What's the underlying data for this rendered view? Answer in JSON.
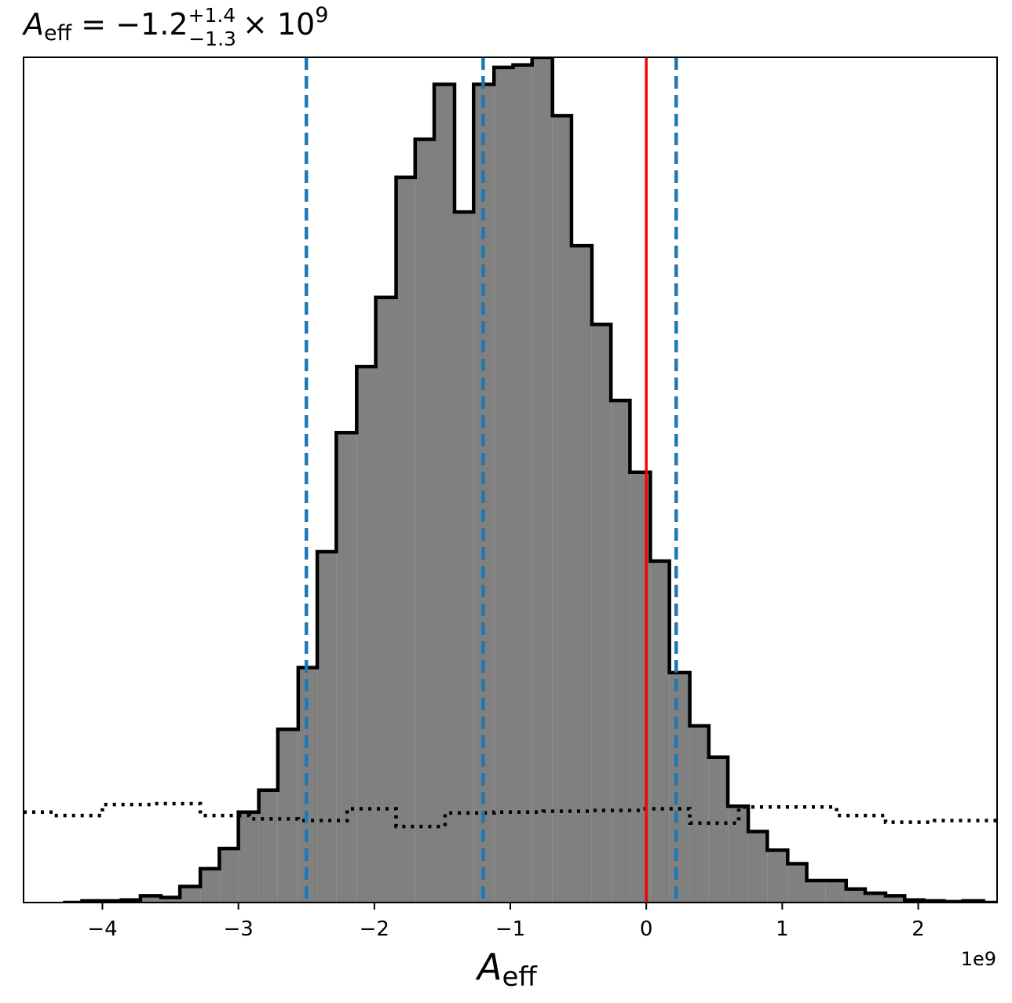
{
  "chart_data": {
    "type": "histogram",
    "title": {
      "main": "A",
      "sub": "eff",
      "equals": " = −1.2",
      "sup": "+1.4",
      "subscript": "−1.3",
      "times": "× 10",
      "exp": "9"
    },
    "xlabel": {
      "main": "A",
      "sub": "eff"
    },
    "offset_label": "1e9",
    "x_unit_scale": 1000000000,
    "xlim": [
      -4.58,
      2.58
    ],
    "ylim": [
      0,
      1.0
    ],
    "xticks": [
      -4,
      -3,
      -2,
      -1,
      0,
      1,
      2
    ],
    "xtick_labels": [
      "−4",
      "−3",
      "−2",
      "−1",
      "0",
      "1",
      "2"
    ],
    "colors": {
      "fill": "#808080",
      "edge": "#000000",
      "quantile_lines": "#1f77b4",
      "truth_line": "#ff0000",
      "prior": "#000000"
    },
    "posterior": {
      "bin_edges": [
        -4.29,
        -4.15,
        -4.0,
        -3.86,
        -3.72,
        -3.57,
        -3.43,
        -3.28,
        -3.14,
        -3.0,
        -2.85,
        -2.71,
        -2.56,
        -2.42,
        -2.28,
        -2.13,
        -1.99,
        -1.84,
        -1.7,
        -1.56,
        -1.41,
        -1.27,
        -1.12,
        -0.98,
        -0.84,
        -0.69,
        -0.55,
        -0.4,
        -0.26,
        -0.12,
        0.03,
        0.17,
        0.32,
        0.46,
        0.6,
        0.75,
        0.89,
        1.04,
        1.18,
        1.32,
        1.47,
        1.61,
        1.76,
        1.9,
        2.04,
        2.19,
        2.33,
        2.48,
        2.58
      ],
      "counts": [
        0.0,
        0.002,
        0.002,
        0.003,
        0.008,
        0.006,
        0.019,
        0.04,
        0.064,
        0.107,
        0.133,
        0.205,
        0.278,
        0.415,
        0.556,
        0.634,
        0.716,
        0.858,
        0.903,
        0.968,
        0.817,
        0.968,
        0.988,
        0.991,
        1.0,
        0.931,
        0.777,
        0.684,
        0.594,
        0.509,
        0.404,
        0.272,
        0.209,
        0.172,
        0.114,
        0.084,
        0.062,
        0.046,
        0.026,
        0.026,
        0.016,
        0.011,
        0.008,
        0.003,
        0.002,
        0.001,
        0.002,
        0.0
      ]
    },
    "prior": {
      "bin_edges": [
        -4.58,
        -4.36,
        -4.0,
        -3.64,
        -3.28,
        -2.92,
        -2.56,
        -2.2,
        -1.84,
        -1.48,
        -1.12,
        -0.76,
        -0.4,
        -0.04,
        0.32,
        0.68,
        1.04,
        1.4,
        1.76,
        2.12,
        2.58
      ],
      "counts": [
        0.107,
        0.103,
        0.116,
        0.117,
        0.103,
        0.099,
        0.097,
        0.111,
        0.09,
        0.106,
        0.107,
        0.108,
        0.109,
        0.111,
        0.094,
        0.113,
        0.113,
        0.103,
        0.095,
        0.097
      ]
    },
    "quantiles": [
      -2.5,
      -1.2,
      0.22
    ],
    "truth": 0.0
  }
}
